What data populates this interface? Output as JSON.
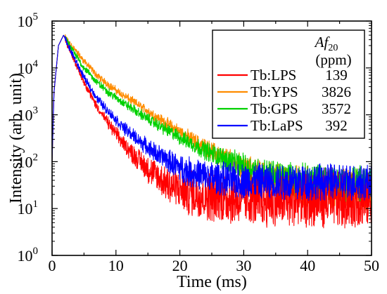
{
  "chart_data": {
    "type": "line",
    "xlabel": "Time (ms)",
    "ylabel": "Intensity (arb. unit)",
    "xlim": [
      0,
      50
    ],
    "ylim_log10": [
      0,
      5
    ],
    "yscale": "log",
    "x_ticks": [
      "0",
      "10",
      "20",
      "30",
      "40",
      "50"
    ],
    "y_ticks": [
      {
        "base": "10",
        "exp": "0"
      },
      {
        "base": "10",
        "exp": "1"
      },
      {
        "base": "10",
        "exp": "2"
      },
      {
        "base": "10",
        "exp": "3"
      },
      {
        "base": "10",
        "exp": "4"
      },
      {
        "base": "10",
        "exp": "5"
      }
    ],
    "grid": false,
    "legend_position": "top-right",
    "legend_header": {
      "af": "Af",
      "af_sub": "20",
      "unit": "(ppm)"
    },
    "series": [
      {
        "name": "Tb:LPS",
        "af20": "139",
        "color": "#ff0000",
        "x": [
          0,
          0.3,
          1,
          1.8,
          3,
          5,
          7,
          9,
          11,
          13,
          15,
          17,
          19,
          21,
          24,
          28,
          32,
          36,
          40,
          45,
          50
        ],
        "y": [
          100,
          3000,
          30000,
          50000,
          20000,
          5000,
          1500,
          600,
          260,
          130,
          70,
          42,
          29,
          23,
          19,
          17,
          16,
          15,
          15,
          15,
          15
        ]
      },
      {
        "name": "Tb:YPS",
        "af20": "3826",
        "color": "#ff8c00",
        "x": [
          0,
          0.3,
          1,
          1.8,
          3,
          5,
          7,
          9,
          11,
          13,
          15,
          17,
          20,
          23,
          26,
          29,
          32,
          35,
          38,
          42,
          46,
          50
        ],
        "y": [
          100,
          3000,
          30000,
          50000,
          30000,
          14000,
          7000,
          4200,
          2700,
          1800,
          1200,
          800,
          440,
          240,
          140,
          85,
          55,
          40,
          32,
          27,
          25,
          25
        ]
      },
      {
        "name": "Tb:GPS",
        "af20": "3572",
        "color": "#00d000",
        "x": [
          0,
          0.3,
          1,
          1.8,
          3,
          5,
          7,
          9,
          11,
          13,
          15,
          17,
          20,
          23,
          26,
          29,
          32,
          35,
          38,
          42,
          46,
          50
        ],
        "y": [
          100,
          3000,
          30000,
          50000,
          26000,
          10000,
          5000,
          2900,
          1850,
          1230,
          820,
          560,
          330,
          200,
          130,
          90,
          62,
          48,
          40,
          35,
          33,
          32
        ]
      },
      {
        "name": "Tb:LaPS",
        "af20": "392",
        "color": "#0000ff",
        "x": [
          0,
          0.3,
          1,
          1.8,
          3,
          5,
          7,
          9,
          11,
          13,
          15,
          17,
          19,
          21,
          24,
          28,
          32,
          36,
          40,
          45,
          50
        ],
        "y": [
          100,
          3000,
          30000,
          50000,
          22000,
          6200,
          2300,
          1100,
          560,
          330,
          200,
          130,
          90,
          65,
          48,
          40,
          38,
          37,
          37,
          37,
          37
        ]
      }
    ]
  }
}
